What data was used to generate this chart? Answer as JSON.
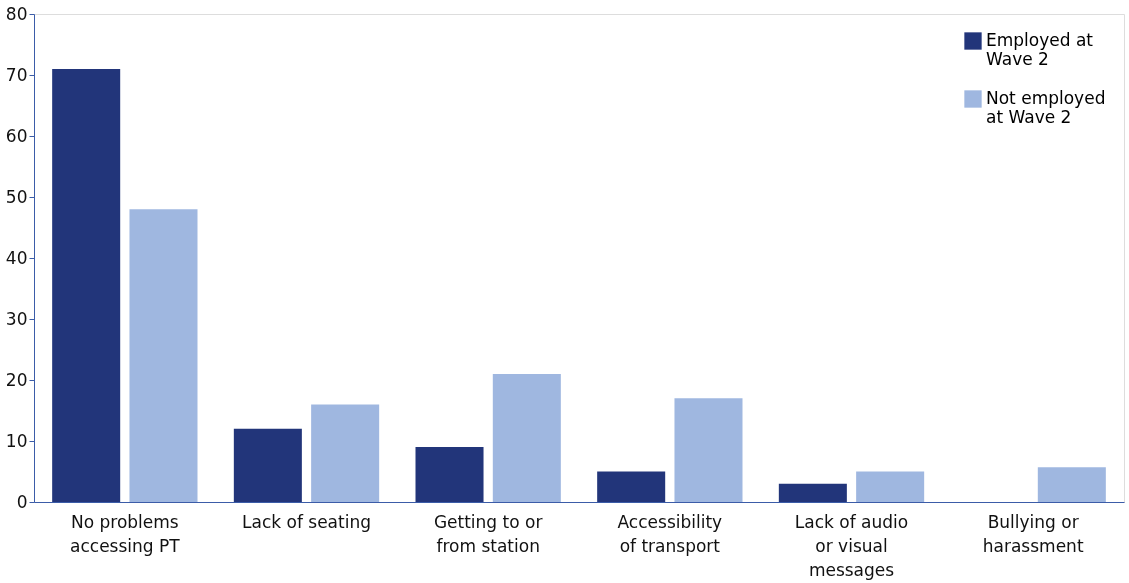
{
  "chart_data": {
    "type": "bar",
    "categories": [
      "No problems accessing PT",
      "Lack of seating",
      "Getting to or from station",
      "Accessibility of transport",
      "Lack of audio or visual messages",
      "Bullying or harassment"
    ],
    "series": [
      {
        "name": "Employed at Wave 2",
        "color": "#22357a",
        "values": [
          71,
          12,
          9,
          5,
          3,
          0
        ]
      },
      {
        "name": "Not employed at Wave 2",
        "color": "#9fb7e0",
        "values": [
          48,
          16,
          21,
          17,
          5,
          5.7
        ]
      }
    ],
    "ylim": [
      0,
      80
    ],
    "yticks": [
      0,
      10,
      20,
      30,
      40,
      50,
      60,
      70,
      80
    ],
    "grid": false,
    "legend": "top right"
  }
}
